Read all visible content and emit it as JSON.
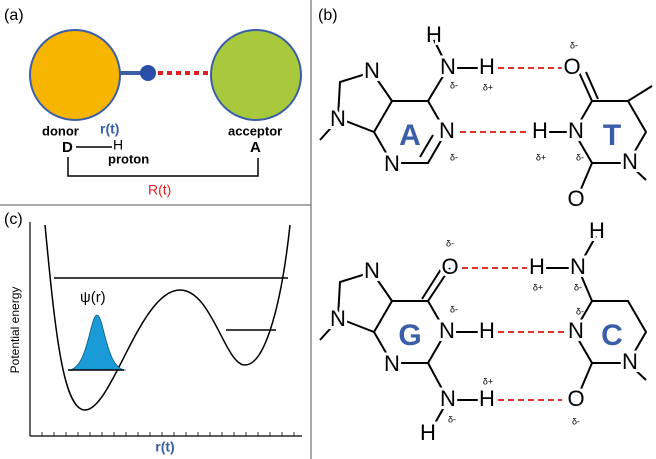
{
  "panels": {
    "a": {
      "label": "(a)",
      "donor": "donor",
      "r": "r(t)",
      "acceptor": "acceptor",
      "D": "D",
      "H": "H",
      "proton": "proton",
      "A": "A",
      "R": "R(t)"
    },
    "b": {
      "label": "(b)",
      "adenine": {
        "base": "A",
        "atoms": [
          "H",
          "N",
          "H",
          "N",
          "N",
          "N",
          "N"
        ],
        "charges": [
          "δ-",
          "δ+",
          "δ-"
        ]
      },
      "thymine": {
        "base": "T",
        "atoms": [
          "O",
          "H",
          "N",
          "N",
          "O"
        ],
        "charges": [
          "δ-",
          "δ+",
          "δ-"
        ]
      },
      "guanine": {
        "base": "G",
        "atoms": [
          "N",
          "O",
          "N",
          "N",
          "H",
          "N",
          "N",
          "H",
          "H"
        ],
        "charges": [
          "δ-",
          "δ-",
          "δ+",
          "δ-"
        ]
      },
      "cytosine": {
        "base": "C",
        "atoms": [
          "H",
          "H",
          "N",
          "N",
          "N",
          "O"
        ],
        "charges": [
          "δ+",
          "δ-",
          "δ-",
          "δ-"
        ]
      }
    },
    "c": {
      "label": "(c)",
      "y_axis": "Potential energy",
      "x_axis": "r(t)",
      "wavefunction": "ψ(r)"
    }
  }
}
